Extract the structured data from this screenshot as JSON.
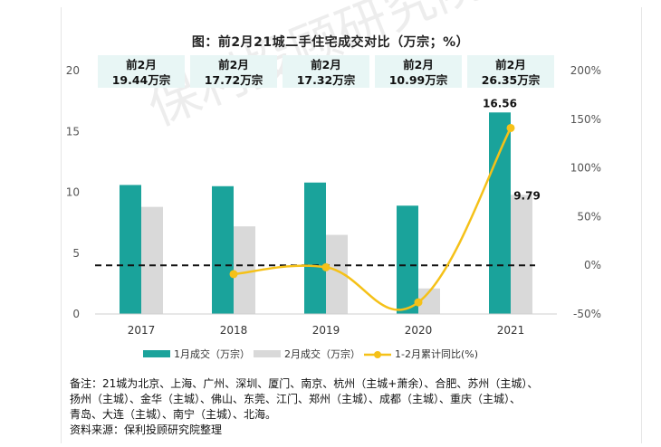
{
  "chart_data": {
    "type": "bar",
    "title": "图：前2月21城二手住宅成交对比（万宗；%）",
    "categories": [
      "2017",
      "2018",
      "2019",
      "2020",
      "2021"
    ],
    "series": [
      {
        "name": "1月成交（万宗）",
        "type": "bar",
        "axis": "left",
        "color": "#1aa39b",
        "values": [
          10.6,
          10.5,
          10.8,
          8.9,
          16.56
        ]
      },
      {
        "name": "2月成交（万宗）",
        "type": "bar",
        "axis": "left",
        "color": "#d9d9d9",
        "values": [
          8.8,
          7.2,
          6.5,
          2.1,
          9.79
        ]
      },
      {
        "name": "1-2月累计同比(%)",
        "type": "line",
        "axis": "right",
        "color": "#f5c118",
        "values": [
          null,
          -9,
          -2,
          -38,
          141
        ]
      }
    ],
    "bar_value_labels": [
      {
        "category": "2021",
        "series": "1月成交（万宗）",
        "text": "16.56"
      },
      {
        "category": "2021",
        "series": "2月成交（万宗）",
        "text": "9.79"
      }
    ],
    "top_boxes": [
      {
        "line1": "前2月",
        "line2": "19.44万宗"
      },
      {
        "line1": "前2月",
        "line2": "17.72万宗"
      },
      {
        "line1": "前2月",
        "line2": "17.32万宗"
      },
      {
        "line1": "前2月",
        "line2": "10.99万宗"
      },
      {
        "line1": "前2月",
        "line2": "26.35万宗"
      }
    ],
    "y_left": {
      "min": 0,
      "max": 20,
      "ticks": [
        "0",
        "5",
        "10",
        "15",
        "20"
      ]
    },
    "y_right": {
      "min": -50,
      "max": 200,
      "ticks": [
        "-50%",
        "0%",
        "50%",
        "100%",
        "150%",
        "200%"
      ]
    },
    "reference_line": {
      "axis": "right",
      "value": 0,
      "style": "dashed"
    },
    "legend_position": "bottom",
    "grid": false
  },
  "note": {
    "line1": "备注：21城为北京、上海、广州、深圳、厦门、南京、杭州（主城+萧余）、合肥、苏州（主城）、",
    "line2": "扬州（主城）、金华（主城）、佛山、东莞、江门、郑州（主城）、成都（主城）、重庆（主城）、",
    "line3": "青岛、大连（主城）、南宁（主城）、北海。",
    "line4": "资料来源：保利投顾研究院整理"
  },
  "watermark": "保利投顾研究院"
}
